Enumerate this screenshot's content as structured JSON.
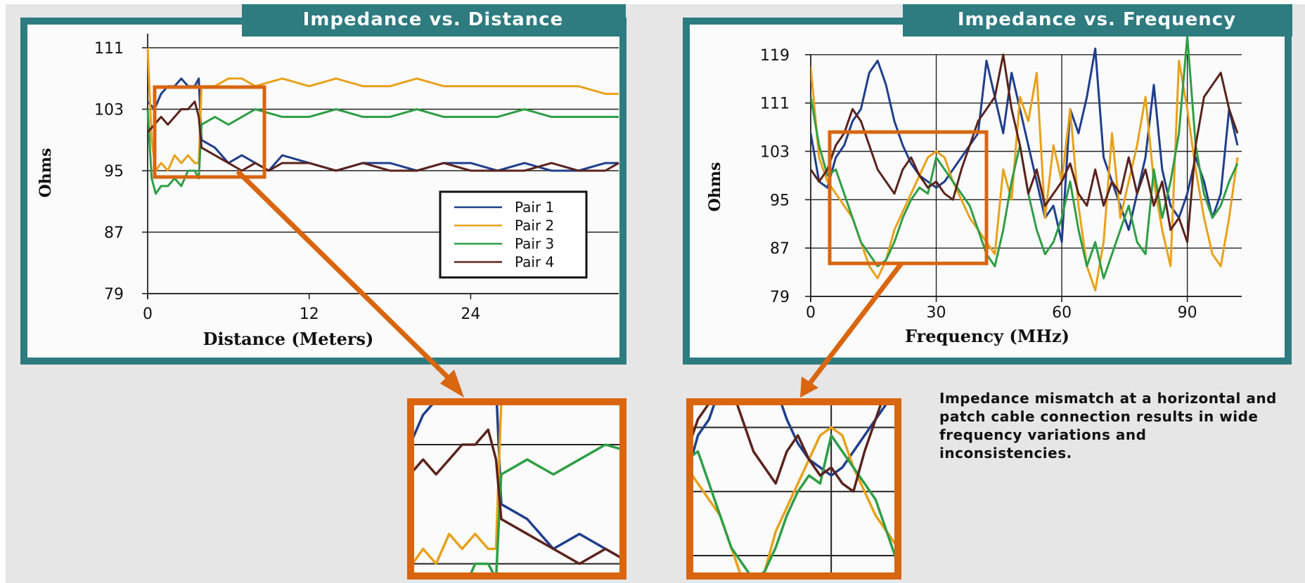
{
  "chart_data": [
    {
      "type": "line",
      "title": "Impedance vs. Distance",
      "xlabel": "Distance (Meters)",
      "ylabel": "Ohms",
      "xlim": [
        0,
        35
      ],
      "ylim": [
        79,
        111
      ],
      "xticks": [
        "0",
        "12",
        "24"
      ],
      "yticks": [
        "111",
        "103",
        "95",
        "87",
        "79"
      ],
      "grid": "horizontal",
      "legend_position": "center-right",
      "colors": {
        "Pair 1": "#1f3e8c",
        "Pair 2": "#e8a11a",
        "Pair 3": "#2e9e45",
        "Pair 4": "#5a231c"
      },
      "series": [
        {
          "name": "Pair 1",
          "x": [
            0,
            0.5,
            1,
            1.5,
            2,
            2.5,
            3,
            3.5,
            3.8,
            4,
            5,
            6,
            7,
            8,
            9,
            10,
            12,
            14,
            16,
            18,
            20,
            22,
            24,
            26,
            28,
            30,
            32,
            34,
            35
          ],
          "y": [
            104,
            103,
            105,
            106,
            106,
            107,
            106,
            106,
            107,
            99,
            98,
            96,
            97,
            96,
            95,
            97,
            96,
            95,
            96,
            96,
            95,
            96,
            96,
            95,
            96,
            95,
            95,
            96,
            96
          ]
        },
        {
          "name": "Pair 2",
          "x": [
            0,
            0.3,
            0.6,
            1,
            1.5,
            2,
            2.5,
            3,
            3.5,
            3.8,
            4,
            5,
            6,
            7,
            8,
            10,
            12,
            14,
            16,
            18,
            20,
            22,
            24,
            26,
            28,
            30,
            32,
            34,
            35
          ],
          "y": [
            111,
            99,
            95,
            96,
            95,
            97,
            96,
            97,
            96,
            96,
            106,
            106,
            107,
            107,
            106,
            107,
            106,
            107,
            106,
            106,
            107,
            106,
            106,
            106,
            106,
            106,
            106,
            105,
            105
          ]
        },
        {
          "name": "Pair 3",
          "x": [
            0,
            0.3,
            0.6,
            1,
            1.5,
            2,
            2.5,
            3,
            3.5,
            3.8,
            4,
            5,
            6,
            7,
            8,
            10,
            12,
            14,
            16,
            18,
            20,
            22,
            24,
            26,
            28,
            30,
            32,
            34,
            35
          ],
          "y": [
            103,
            94,
            92,
            93,
            93,
            94,
            93,
            95,
            95,
            94,
            101,
            102,
            101,
            102,
            103,
            102,
            102,
            103,
            102,
            102,
            103,
            102,
            102,
            102,
            103,
            102,
            102,
            102,
            102
          ]
        },
        {
          "name": "Pair 4",
          "x": [
            0,
            0.5,
            1,
            1.5,
            2,
            2.5,
            3,
            3.5,
            3.8,
            4,
            5,
            6,
            7,
            8,
            9,
            10,
            12,
            14,
            16,
            18,
            20,
            22,
            24,
            26,
            28,
            30,
            32,
            34,
            35
          ],
          "y": [
            100,
            101,
            102,
            101,
            102,
            103,
            103,
            104,
            102,
            98,
            97,
            96,
            95,
            96,
            95,
            96,
            96,
            95,
            96,
            95,
            95,
            96,
            95,
            95,
            95,
            96,
            95,
            95,
            96
          ]
        }
      ]
    },
    {
      "type": "line",
      "title": "Impedance vs. Frequency",
      "xlabel": "Frequency (MHz)",
      "ylabel": "Ohms",
      "xlim": [
        0,
        103
      ],
      "ylim": [
        79,
        122
      ],
      "xticks": [
        "0",
        "30",
        "60",
        "90"
      ],
      "yticks": [
        "119",
        "111",
        "103",
        "95",
        "87",
        "79"
      ],
      "grid": "both",
      "colors": {
        "Pair 1": "#1f3e8c",
        "Pair 2": "#e8a11a",
        "Pair 3": "#2e9e45",
        "Pair 4": "#5a231c"
      },
      "series": [
        {
          "name": "Pair 1",
          "x": [
            0,
            2,
            4,
            6,
            8,
            10,
            12,
            14,
            16,
            18,
            20,
            22,
            24,
            26,
            28,
            30,
            32,
            34,
            36,
            38,
            40,
            42,
            44,
            46,
            48,
            50,
            52,
            54,
            56,
            58,
            60,
            62,
            64,
            66,
            68,
            70,
            72,
            74,
            76,
            78,
            80,
            82,
            84,
            86,
            88,
            90,
            92,
            94,
            96,
            98,
            100,
            102
          ],
          "y": [
            106,
            98,
            97,
            102,
            104,
            108,
            110,
            116,
            118,
            114,
            108,
            104,
            101,
            99,
            98,
            97,
            98,
            100,
            102,
            104,
            106,
            118,
            112,
            106,
            116,
            110,
            104,
            98,
            92,
            94,
            88,
            110,
            106,
            112,
            120,
            102,
            98,
            94,
            90,
            96,
            102,
            114,
            100,
            94,
            92,
            96,
            102,
            98,
            92,
            96,
            110,
            104
          ]
        },
        {
          "name": "Pair 2",
          "x": [
            0,
            2,
            4,
            6,
            8,
            10,
            12,
            14,
            16,
            18,
            20,
            22,
            24,
            26,
            28,
            30,
            32,
            34,
            36,
            38,
            40,
            42,
            44,
            46,
            48,
            50,
            52,
            54,
            56,
            58,
            60,
            62,
            64,
            66,
            68,
            70,
            72,
            74,
            76,
            78,
            80,
            82,
            84,
            86,
            88,
            90,
            92,
            94,
            96,
            98,
            100,
            102
          ],
          "y": [
            117,
            102,
            98,
            96,
            94,
            92,
            88,
            84,
            82,
            85,
            90,
            93,
            96,
            99,
            102,
            103,
            102,
            98,
            95,
            92,
            90,
            88,
            86,
            100,
            95,
            112,
            108,
            116,
            92,
            104,
            98,
            110,
            94,
            84,
            80,
            88,
            106,
            92,
            98,
            104,
            112,
            98,
            90,
            84,
            118,
            110,
            100,
            92,
            86,
            84,
            92,
            102
          ]
        },
        {
          "name": "Pair 3",
          "x": [
            0,
            2,
            4,
            6,
            8,
            10,
            12,
            14,
            16,
            18,
            20,
            22,
            24,
            26,
            28,
            30,
            32,
            34,
            36,
            38,
            40,
            42,
            44,
            46,
            48,
            50,
            52,
            54,
            56,
            58,
            60,
            62,
            64,
            66,
            68,
            70,
            72,
            74,
            76,
            78,
            80,
            82,
            84,
            86,
            88,
            90,
            92,
            94,
            96,
            98,
            100,
            102
          ],
          "y": [
            112,
            104,
            99,
            100,
            96,
            92,
            88,
            86,
            84,
            85,
            88,
            92,
            95,
            97,
            96,
            102,
            100,
            98,
            96,
            94,
            90,
            86,
            84,
            90,
            98,
            104,
            96,
            90,
            86,
            88,
            92,
            98,
            90,
            84,
            88,
            82,
            86,
            90,
            94,
            88,
            86,
            100,
            92,
            98,
            106,
            122,
            104,
            96,
            92,
            94,
            98,
            101
          ]
        },
        {
          "name": "Pair 4",
          "x": [
            0,
            2,
            4,
            6,
            8,
            10,
            12,
            14,
            16,
            18,
            20,
            22,
            24,
            26,
            28,
            30,
            32,
            34,
            36,
            38,
            40,
            42,
            44,
            46,
            48,
            50,
            52,
            54,
            56,
            58,
            60,
            62,
            64,
            66,
            68,
            70,
            72,
            74,
            76,
            78,
            80,
            82,
            84,
            86,
            88,
            90,
            92,
            94,
            96,
            98,
            100,
            102
          ],
          "y": [
            100,
            98,
            100,
            104,
            106,
            110,
            108,
            104,
            100,
            98,
            96,
            100,
            102,
            99,
            97,
            98,
            96,
            95,
            100,
            104,
            108,
            110,
            112,
            119,
            110,
            104,
            96,
            100,
            94,
            96,
            98,
            101,
            96,
            94,
            100,
            94,
            98,
            96,
            102,
            96,
            100,
            94,
            98,
            90,
            92,
            88,
            104,
            112,
            114,
            116,
            110,
            106
          ]
        }
      ]
    }
  ],
  "note": "Impedance mismatch at a horizontal and patch cable connection results in wide frequency variations and inconsistencies."
}
